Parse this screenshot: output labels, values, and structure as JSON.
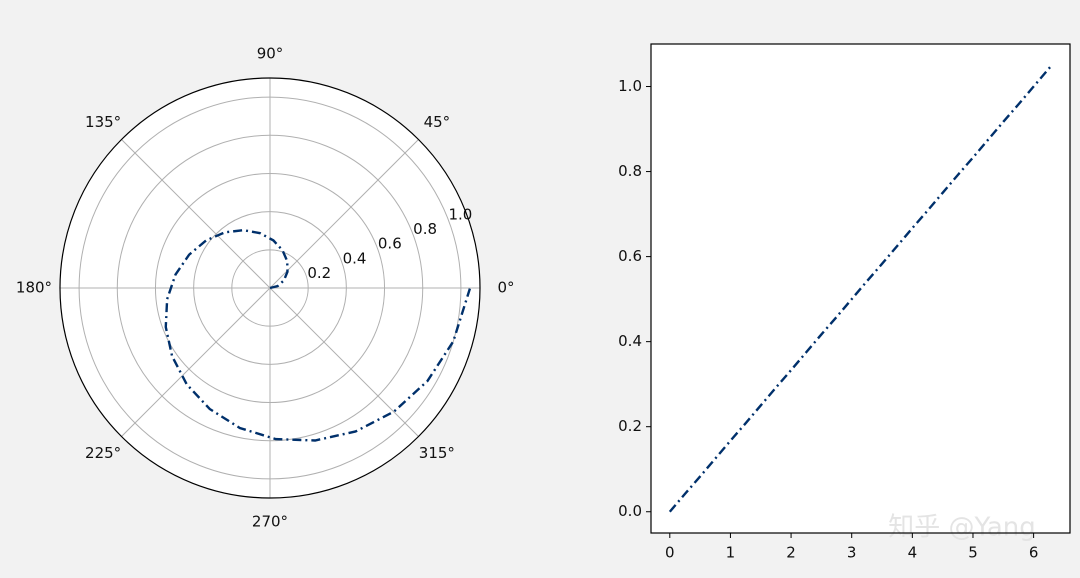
{
  "chart_data": [
    {
      "type": "polar",
      "color": "#00306b",
      "line_style": "dashdot",
      "x": [
        0,
        0.25,
        0.5,
        0.75,
        1,
        1.25,
        1.5,
        1.75,
        2,
        2.25,
        2.5,
        2.75,
        3,
        3.25,
        3.5,
        3.75,
        4,
        4.25,
        4.5,
        4.75,
        5,
        5.25,
        5.5,
        5.75,
        6,
        6.28
      ],
      "values": [
        0,
        0.042,
        0.083,
        0.125,
        0.167,
        0.208,
        0.25,
        0.292,
        0.333,
        0.375,
        0.417,
        0.458,
        0.5,
        0.542,
        0.583,
        0.625,
        0.667,
        0.708,
        0.75,
        0.792,
        0.833,
        0.875,
        0.917,
        0.958,
        1.0,
        1.047
      ],
      "ylim": [
        0,
        1.1
      ],
      "yticks": [
        0.2,
        0.4,
        0.6,
        0.8,
        {
          "value": 1,
          "label": "1.0"
        }
      ],
      "xticks": [
        {
          "value": 0,
          "label": "0°"
        },
        {
          "value": 45,
          "label": "45°"
        },
        {
          "value": 90,
          "label": "90°"
        },
        {
          "value": 135,
          "label": "135°"
        },
        {
          "value": 180,
          "label": "180°"
        },
        {
          "value": 225,
          "label": "225°"
        },
        {
          "value": 270,
          "label": "270°"
        },
        {
          "value": 315,
          "label": "315°"
        }
      ],
      "grid": true
    },
    {
      "type": "line",
      "color": "#00306b",
      "line_style": "dashdot",
      "x": [
        0,
        0.25,
        0.5,
        0.75,
        1,
        1.25,
        1.5,
        1.75,
        2,
        2.25,
        2.5,
        2.75,
        3,
        3.25,
        3.5,
        3.75,
        4,
        4.25,
        4.5,
        4.75,
        5,
        5.25,
        5.5,
        5.75,
        6,
        6.28
      ],
      "values": [
        0,
        0.042,
        0.083,
        0.125,
        0.167,
        0.208,
        0.25,
        0.292,
        0.333,
        0.375,
        0.417,
        0.458,
        0.5,
        0.542,
        0.583,
        0.625,
        0.667,
        0.708,
        0.75,
        0.792,
        0.833,
        0.875,
        0.917,
        0.958,
        1.0,
        1.047
      ],
      "xlim": [
        -0.31,
        6.6
      ],
      "ylim": [
        -0.05,
        1.1
      ],
      "xticks": [
        0,
        1,
        2,
        3,
        4,
        5,
        6
      ],
      "yticks": [
        {
          "value": 0,
          "label": "0.0"
        },
        0.2,
        0.4,
        0.6,
        0.8,
        {
          "value": 1,
          "label": "1.0"
        }
      ],
      "grid": false,
      "watermark": "知乎 @Yang"
    }
  ]
}
